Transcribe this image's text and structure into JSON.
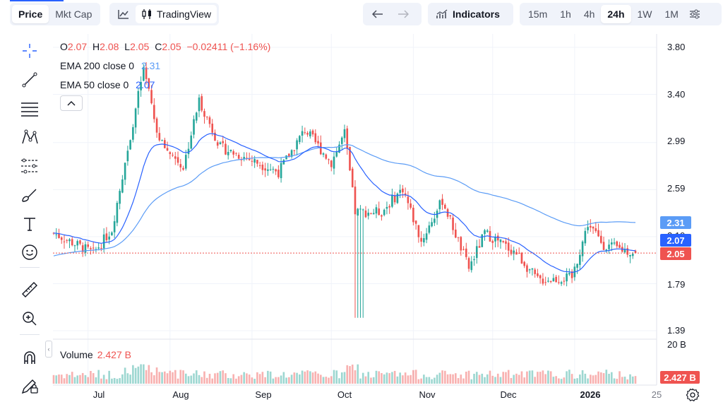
{
  "toolbar": {
    "price_label": "Price",
    "mktcap_label": "Mkt Cap",
    "tradingview_label": "TradingView",
    "indicators_label": "Indicators",
    "intervals": [
      "15m",
      "1h",
      "4h",
      "24h",
      "1W",
      "1M"
    ],
    "active_interval": "24h"
  },
  "legend": {
    "o_label": "O",
    "o_value": "2.07",
    "h_label": "H",
    "h_value": "2.08",
    "l_label": "L",
    "l_value": "2.05",
    "c_label": "C",
    "c_value": "2.05",
    "change": "−0.02411 (−1.16%)",
    "ema200_label": "EMA 200 close 0",
    "ema200_value": "2.31",
    "ema50_label": "EMA 50 close 0",
    "ema50_value": "2.07"
  },
  "volume": {
    "label": "Volume",
    "value": "2.427 B",
    "axis_top": "20 B"
  },
  "price_axis": [
    "3.80",
    "3.40",
    "2.99",
    "2.59",
    "2.19",
    "1.79",
    "1.39"
  ],
  "price_tags": {
    "ema200": "2.31",
    "ema50": "2.07",
    "last": "2.05"
  },
  "time_axis": [
    "Jul",
    "Aug",
    "Sep",
    "Oct",
    "Nov",
    "Dec",
    "2026",
    "25"
  ],
  "colors": {
    "up": "#26a69a",
    "down": "#ef5350",
    "ema200": "#5b9cf6",
    "ema50": "#2962ff",
    "last_line": "#ef5350"
  },
  "chart_data": {
    "type": "candlestick",
    "x_start": "2025-06-18",
    "x_end": "2026-01-24",
    "ylim": [
      1.39,
      3.8
    ],
    "open": 2.07,
    "high": 2.08,
    "low": 2.05,
    "close": 2.05,
    "series": [
      {
        "name": "EMA 200 close 0",
        "last": 2.31
      },
      {
        "name": "EMA 50 close 0",
        "last": 2.07
      },
      {
        "name": "Volume",
        "last": "2.427 B"
      }
    ],
    "keypoints": [
      {
        "date": "2025-06-18",
        "price": 2.22
      },
      {
        "date": "2025-07-03",
        "price": 2.05
      },
      {
        "date": "2025-07-10",
        "price": 2.25
      },
      {
        "date": "2025-07-22",
        "price": 3.62
      },
      {
        "date": "2025-07-28",
        "price": 3.0
      },
      {
        "date": "2025-08-06",
        "price": 2.78
      },
      {
        "date": "2025-08-12",
        "price": 3.35
      },
      {
        "date": "2025-08-20",
        "price": 2.95
      },
      {
        "date": "2025-09-03",
        "price": 2.82
      },
      {
        "date": "2025-09-11",
        "price": 2.74
      },
      {
        "date": "2025-09-21",
        "price": 3.1
      },
      {
        "date": "2025-10-01",
        "price": 2.82
      },
      {
        "date": "2025-10-06",
        "price": 3.07
      },
      {
        "date": "2025-10-10",
        "price": 2.4
      },
      {
        "date": "2025-10-20",
        "price": 2.4
      },
      {
        "date": "2025-10-28",
        "price": 2.6
      },
      {
        "date": "2025-11-04",
        "price": 2.15
      },
      {
        "date": "2025-11-12",
        "price": 2.5
      },
      {
        "date": "2025-11-22",
        "price": 1.92
      },
      {
        "date": "2025-11-28",
        "price": 2.22
      },
      {
        "date": "2025-12-10",
        "price": 2.05
      },
      {
        "date": "2025-12-18",
        "price": 1.82
      },
      {
        "date": "2025-12-31",
        "price": 1.84
      },
      {
        "date": "2026-01-06",
        "price": 2.3
      },
      {
        "date": "2026-01-12",
        "price": 2.12
      },
      {
        "date": "2026-01-24",
        "price": 2.05
      }
    ]
  }
}
